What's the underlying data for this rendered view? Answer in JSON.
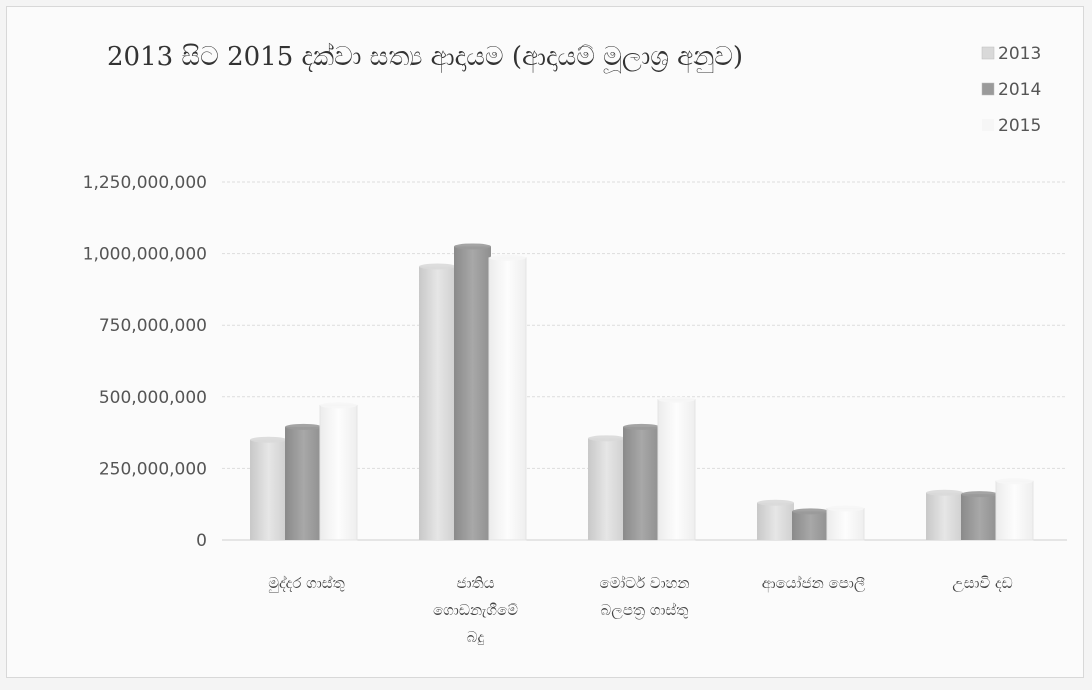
{
  "chart_data": {
    "type": "bar",
    "title": "2013 සිට 2015 දක්වා සත්‍ය ආදායම (ආදායම් මූලාශ්‍ර අනුව)",
    "categories": [
      [
        "මුද්දර ගාස්තු"
      ],
      [
        "ජාතිය",
        "ගොඩනැගීමේ",
        "බදු"
      ],
      [
        "මෝටර් වාහන",
        "බලපත්‍ර ගාස්තු"
      ],
      [
        "ආයෝජන පොලී"
      ],
      [
        "උසාවි දඩ"
      ]
    ],
    "series": [
      {
        "name": "2013",
        "values": [
          350000000,
          955000000,
          355000000,
          130000000,
          165000000
        ]
      },
      {
        "name": "2014",
        "values": [
          395000000,
          1025000000,
          395000000,
          100000000,
          160000000
        ]
      },
      {
        "name": "2015",
        "values": [
          470000000,
          985000000,
          490000000,
          110000000,
          205000000
        ]
      }
    ],
    "ylim": [
      0,
      1250000000
    ],
    "yticks": [
      "0",
      "250,000,000",
      "500,000,000",
      "750,000,000",
      "1,000,000,000",
      "1,250,000,000"
    ],
    "grid": true,
    "legend_position": "top-right",
    "colors": {
      "2013": "#d9d9d9",
      "2014": "#9a9a9a",
      "2015": "#f6f6f6"
    }
  }
}
